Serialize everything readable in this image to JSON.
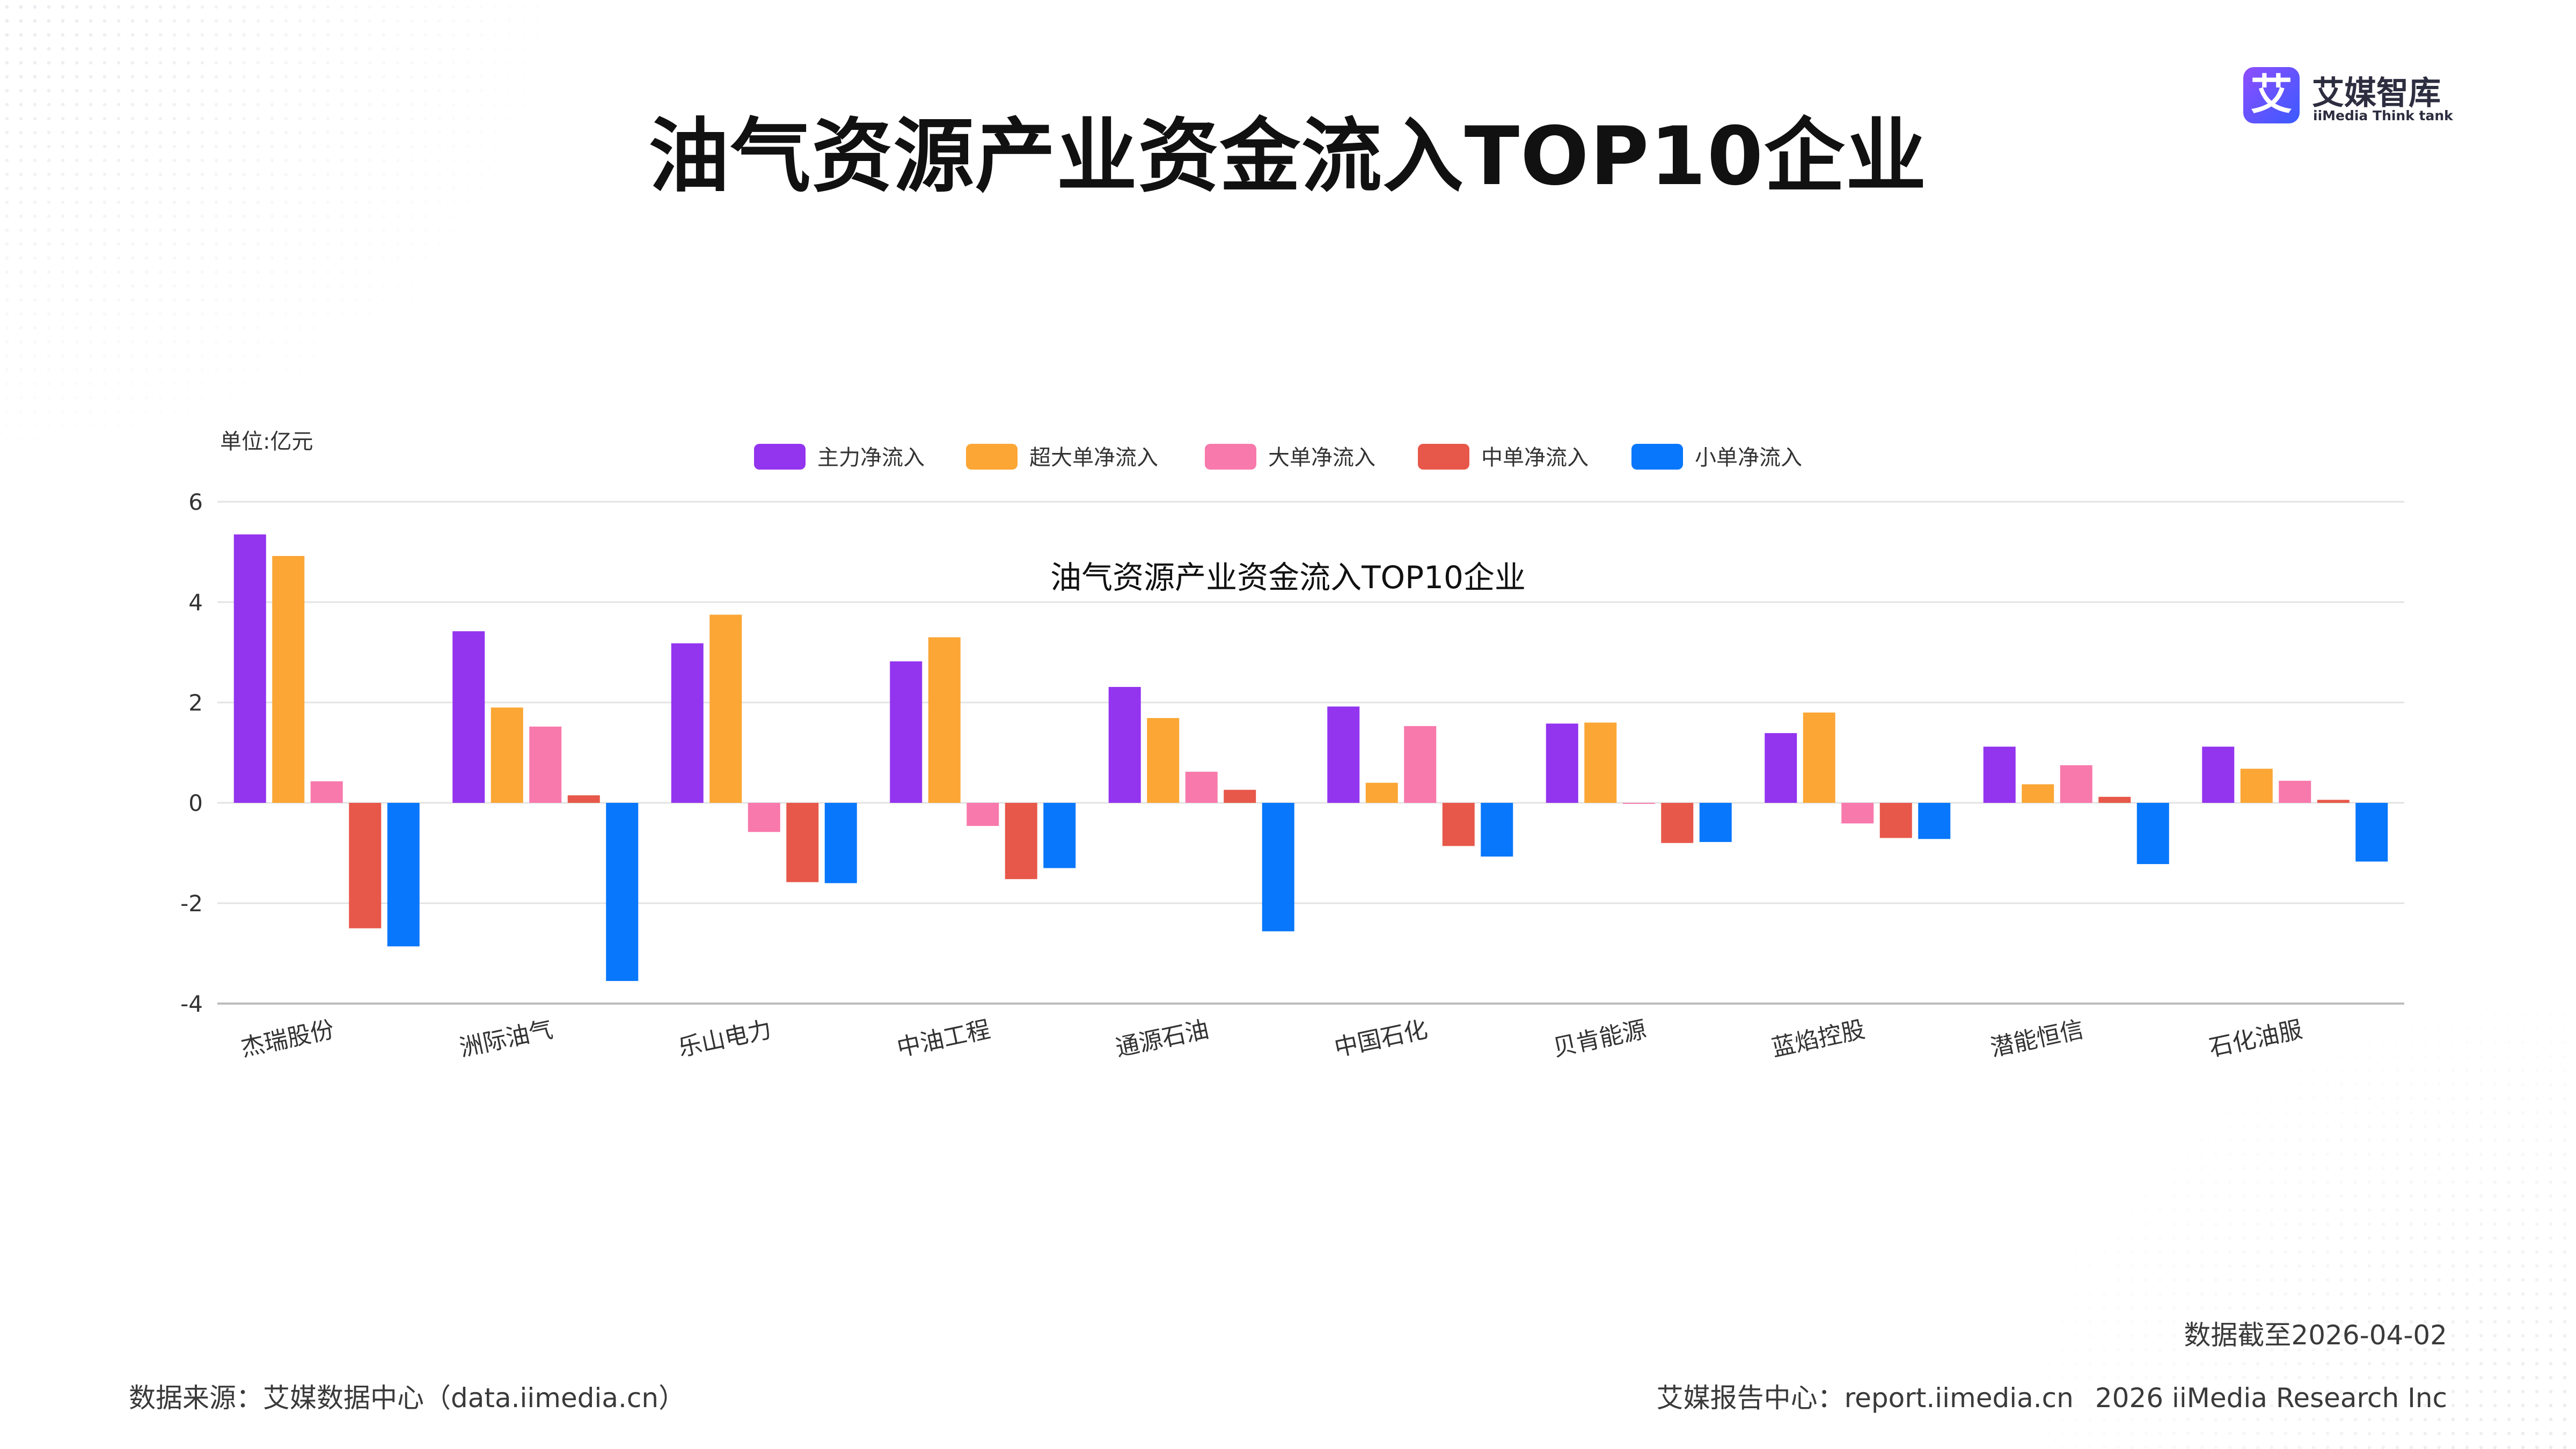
{
  "page": {
    "title": "油气资源产业资金流入TOP10企业",
    "logo": {
      "mark": "艾",
      "name": "艾媒智库",
      "sub": "iiMedia Think tank"
    },
    "footer": {
      "source": "数据来源：艾媒数据中心（data.iimedia.cn）",
      "date": "数据截至2026-04-02",
      "report": "艾媒报告中心：report.iimedia.cn",
      "copyright": "2026 iiMedia Research Inc"
    }
  },
  "chart_data": {
    "type": "bar",
    "title": "油气资源产业资金流入TOP10企业",
    "unit_label": "单位:亿元",
    "ylim": [
      -4,
      6
    ],
    "yticks": [
      6,
      4,
      2,
      0,
      -2,
      -4
    ],
    "grid": true,
    "legend_position": "top-center",
    "categories": [
      "杰瑞股份",
      "洲际油气",
      "乐山电力",
      "中油工程",
      "通源石油",
      "中国石化",
      "贝肯能源",
      "蓝焰控股",
      "潜能恒信",
      "石化油服"
    ],
    "series": [
      {
        "name": "主力净流入",
        "color": "#9334ef",
        "values": [
          5.35,
          3.42,
          3.18,
          2.82,
          2.31,
          1.92,
          1.58,
          1.39,
          1.12,
          1.12
        ]
      },
      {
        "name": "超大单净流入",
        "color": "#fba635",
        "values": [
          4.92,
          1.9,
          3.75,
          3.3,
          1.69,
          0.4,
          1.6,
          1.8,
          0.37,
          0.68
        ]
      },
      {
        "name": "大单净流入",
        "color": "#f879ac",
        "values": [
          0.43,
          1.52,
          -0.58,
          -0.46,
          0.62,
          1.53,
          -0.02,
          -0.41,
          0.75,
          0.44
        ]
      },
      {
        "name": "中单净流入",
        "color": "#e7584a",
        "values": [
          -2.5,
          0.15,
          -1.58,
          -1.52,
          0.26,
          -0.86,
          -0.8,
          -0.7,
          0.12,
          0.06
        ]
      },
      {
        "name": "小单净流入",
        "color": "#0877fb",
        "values": [
          -2.86,
          -3.55,
          -1.6,
          -1.3,
          -2.56,
          -1.07,
          -0.78,
          -0.72,
          -1.22,
          -1.17
        ]
      }
    ]
  }
}
